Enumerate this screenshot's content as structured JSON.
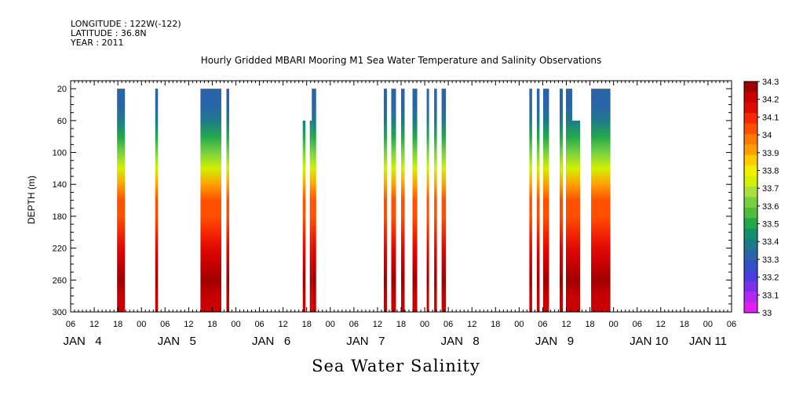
{
  "header": {
    "longitude": "LONGITUDE : 122W(-122)",
    "latitude": "LATITUDE : 36.8N",
    "year": "YEAR : 2011"
  },
  "chart_data": {
    "type": "heatmap",
    "title": "Hourly Gridded MBARI Mooring M1 Sea Water Temperature and Salinity Observations",
    "variable_title": "Sea Water Salinity",
    "ylabel": "DEPTH (m)",
    "ylim": [
      300,
      10
    ],
    "y_ticks": [
      20,
      60,
      100,
      140,
      180,
      220,
      260,
      300
    ],
    "x_range_hours": [
      0,
      168
    ],
    "x_hour_ticks": [
      {
        "h": 0,
        "label": "06"
      },
      {
        "h": 6,
        "label": "12"
      },
      {
        "h": 12,
        "label": "18"
      },
      {
        "h": 18,
        "label": "00"
      },
      {
        "h": 24,
        "label": "06"
      },
      {
        "h": 30,
        "label": "12"
      },
      {
        "h": 36,
        "label": "18"
      },
      {
        "h": 42,
        "label": "00"
      },
      {
        "h": 48,
        "label": "06"
      },
      {
        "h": 54,
        "label": "12"
      },
      {
        "h": 60,
        "label": "18"
      },
      {
        "h": 66,
        "label": "00"
      },
      {
        "h": 72,
        "label": "06"
      },
      {
        "h": 78,
        "label": "12"
      },
      {
        "h": 84,
        "label": "18"
      },
      {
        "h": 90,
        "label": "00"
      },
      {
        "h": 96,
        "label": "06"
      },
      {
        "h": 102,
        "label": "12"
      },
      {
        "h": 108,
        "label": "18"
      },
      {
        "h": 114,
        "label": "00"
      },
      {
        "h": 120,
        "label": "06"
      },
      {
        "h": 126,
        "label": "12"
      },
      {
        "h": 132,
        "label": "18"
      },
      {
        "h": 138,
        "label": "00"
      },
      {
        "h": 144,
        "label": "06"
      },
      {
        "h": 150,
        "label": "12"
      },
      {
        "h": 156,
        "label": "18"
      },
      {
        "h": 162,
        "label": "00"
      },
      {
        "h": 168,
        "label": "06"
      }
    ],
    "x_day_labels": [
      {
        "h": 3,
        "label": "JAN   4"
      },
      {
        "h": 27,
        "label": "JAN   5"
      },
      {
        "h": 51,
        "label": "JAN   6"
      },
      {
        "h": 75,
        "label": "JAN   7"
      },
      {
        "h": 99,
        "label": "JAN   8"
      },
      {
        "h": 123,
        "label": "JAN   9"
      },
      {
        "h": 147,
        "label": "JAN 10"
      },
      {
        "h": 162,
        "label": "JAN 11"
      }
    ],
    "colorbar": {
      "levels": [
        "34.3",
        "34.2",
        "34.1",
        "34",
        "33.9",
        "33.8",
        "33.7",
        "33.6",
        "33.5",
        "33.4",
        "33.3",
        "33.2",
        "33.1",
        "33"
      ],
      "colors": [
        "#a00000",
        "#c80000",
        "#e00a00",
        "#f52800",
        "#ff5000",
        "#ff7a00",
        "#ffa000",
        "#ffcc00",
        "#f0f000",
        "#d2f000",
        "#a8e040",
        "#78d040",
        "#4cbe3c",
        "#22a84a",
        "#12906a",
        "#1e7a8a",
        "#2a64a8",
        "#3450c8",
        "#4a3ce0",
        "#7a30ec",
        "#b428f0",
        "#e020f0"
      ]
    },
    "depth_profile": {
      "depths": [
        20,
        40,
        60,
        80,
        100,
        120,
        140,
        160,
        180,
        200,
        220,
        240,
        260,
        280,
        300
      ],
      "salinity": [
        33.3,
        33.35,
        33.4,
        33.5,
        33.6,
        33.75,
        33.9,
        34.02,
        34.04,
        34.1,
        34.16,
        34.2,
        34.26,
        34.22,
        34.2
      ]
    },
    "data_segments": [
      {
        "start": 11.8,
        "end": 13.8,
        "top_depth": 20
      },
      {
        "start": 21.5,
        "end": 22.2,
        "top_depth": 20
      },
      {
        "start": 33.0,
        "end": 38.3,
        "top_depth": 20
      },
      {
        "start": 39.6,
        "end": 40.3,
        "top_depth": 20
      },
      {
        "start": 59.0,
        "end": 59.7,
        "top_depth": 60
      },
      {
        "start": 60.8,
        "end": 61.3,
        "top_depth": 60
      },
      {
        "start": 61.3,
        "end": 62.4,
        "top_depth": 20
      },
      {
        "start": 79.6,
        "end": 80.4,
        "top_depth": 20
      },
      {
        "start": 81.5,
        "end": 82.7,
        "top_depth": 20
      },
      {
        "start": 84.0,
        "end": 84.9,
        "top_depth": 20
      },
      {
        "start": 86.9,
        "end": 88.1,
        "top_depth": 20
      },
      {
        "start": 90.5,
        "end": 91.1,
        "top_depth": 20
      },
      {
        "start": 92.4,
        "end": 93.1,
        "top_depth": 20
      },
      {
        "start": 94.3,
        "end": 95.4,
        "top_depth": 20
      },
      {
        "start": 116.6,
        "end": 117.3,
        "top_depth": 20
      },
      {
        "start": 118.5,
        "end": 119.2,
        "top_depth": 20
      },
      {
        "start": 120.1,
        "end": 121.6,
        "top_depth": 20
      },
      {
        "start": 124.3,
        "end": 125.1,
        "top_depth": 20
      },
      {
        "start": 125.9,
        "end": 127.5,
        "top_depth": 20
      },
      {
        "start": 127.5,
        "end": 129.5,
        "top_depth": 60
      },
      {
        "start": 132.3,
        "end": 137.2,
        "top_depth": 20
      }
    ]
  }
}
